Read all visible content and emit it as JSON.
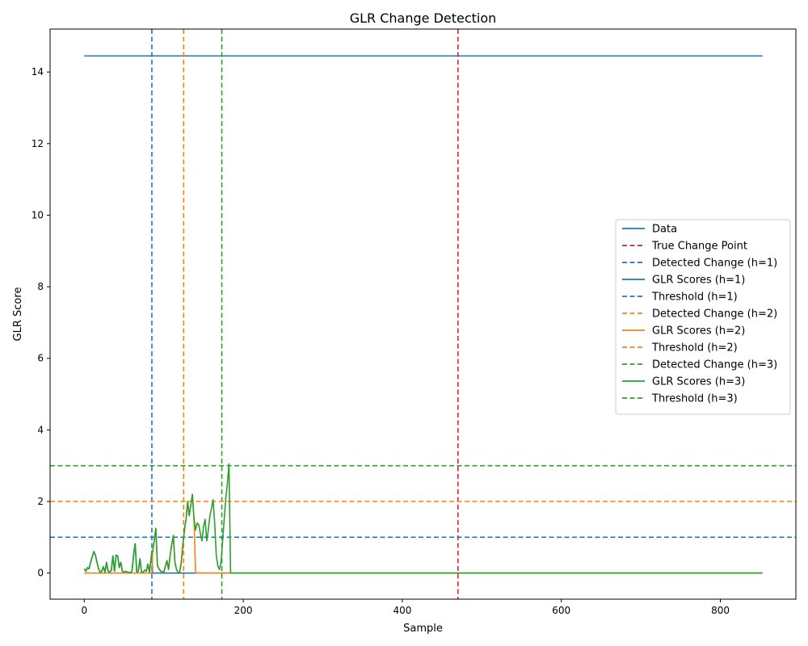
{
  "chart_data": {
    "type": "line",
    "title": "GLR Change Detection",
    "xlabel": "Sample",
    "ylabel": "GLR Score",
    "xlim": [
      -43,
      895
    ],
    "ylim": [
      -0.73,
      15.2
    ],
    "xticks": [
      0,
      200,
      400,
      600,
      800
    ],
    "yticks": [
      0,
      2,
      4,
      6,
      8,
      10,
      12,
      14
    ],
    "grid": false,
    "legend_position": "center-right",
    "legend": [
      {
        "label": "Data",
        "color": "#1f77b4",
        "style": "solid"
      },
      {
        "label": "True Change Point",
        "color": "#d62728",
        "style": "dashed"
      },
      {
        "label": "Detected Change (h=1)",
        "color": "#1f77b4",
        "style": "dashed"
      },
      {
        "label": "GLR Scores (h=1)",
        "color": "#1f77b4",
        "style": "solid"
      },
      {
        "label": "Threshold (h=1)",
        "color": "#1f77b4",
        "style": "dashed"
      },
      {
        "label": "Detected Change (h=2)",
        "color": "#ff7f0e",
        "style": "dashed"
      },
      {
        "label": "GLR Scores (h=2)",
        "color": "#ff7f0e",
        "style": "solid"
      },
      {
        "label": "Threshold (h=2)",
        "color": "#ff7f0e",
        "style": "dashed"
      },
      {
        "label": "Detected Change (h=3)",
        "color": "#2ca02c",
        "style": "dashed"
      },
      {
        "label": "GLR Scores (h=3)",
        "color": "#2ca02c",
        "style": "solid"
      },
      {
        "label": "Threshold (h=3)",
        "color": "#2ca02c",
        "style": "dashed"
      }
    ],
    "vlines": [
      {
        "label": "True Change Point",
        "x": 470,
        "color": "#d62728"
      },
      {
        "label": "Detected Change (h=1)",
        "x": 85,
        "color": "#1f77b4"
      },
      {
        "label": "Detected Change (h=2)",
        "x": 125,
        "color": "#ff7f0e"
      },
      {
        "label": "Detected Change (h=3)",
        "x": 173,
        "color": "#2ca02c"
      }
    ],
    "hlines": [
      {
        "label": "Threshold (h=1)",
        "y": 1,
        "color": "#1f77b4"
      },
      {
        "label": "Threshold (h=2)",
        "y": 2,
        "color": "#ff7f0e"
      },
      {
        "label": "Threshold (h=3)",
        "y": 3,
        "color": "#2ca02c"
      }
    ],
    "series": [
      {
        "name": "Data",
        "color": "#1f77b4",
        "x": [
          0,
          853
        ],
        "y": [
          14.45,
          14.45
        ]
      },
      {
        "name": "GLR Scores (h=1)",
        "color": "#1f77b4",
        "x": [
          0,
          2,
          4,
          6,
          8,
          10,
          12,
          14,
          16,
          18,
          20,
          22,
          24,
          26,
          28,
          30,
          32,
          34,
          36,
          38,
          40,
          42,
          44,
          46,
          48,
          50,
          52,
          55,
          58,
          60,
          62,
          64,
          66,
          68,
          70,
          72,
          74,
          76,
          78,
          80,
          82,
          85,
          86,
          853
        ],
        "y": [
          0.12,
          0.05,
          0.15,
          0.12,
          0.3,
          0.45,
          0.6,
          0.5,
          0.3,
          0.12,
          0.02,
          0.05,
          0.18,
          0.02,
          0.3,
          0.05,
          0.02,
          0.08,
          0.48,
          0.05,
          0.5,
          0.48,
          0.15,
          0.3,
          0.05,
          0.02,
          0.05,
          0.02,
          0.01,
          0.05,
          0.5,
          0.82,
          0.02,
          0.05,
          0.4,
          0.02,
          0.02,
          0.08,
          0.05,
          0.25,
          0.02,
          0.6,
          0,
          0
        ]
      },
      {
        "name": "GLR Scores (h=2)",
        "color": "#ff7f0e",
        "x": [
          0,
          85,
          86,
          88,
          90,
          92,
          94,
          96,
          100,
          104,
          106,
          108,
          110,
          112,
          114,
          116,
          118,
          120,
          122,
          124,
          126,
          128,
          130,
          132,
          134,
          136,
          138,
          140,
          853
        ],
        "y": [
          0,
          0,
          0.6,
          0.9,
          1.25,
          0.2,
          0.12,
          0.05,
          0.02,
          0.35,
          0.1,
          0.5,
          0.8,
          1.05,
          0.3,
          0.1,
          0.02,
          0.02,
          0.3,
          0.8,
          1.2,
          1.5,
          2.0,
          1.6,
          1.9,
          2.2,
          1.5,
          0,
          0
        ]
      },
      {
        "name": "GLR Scores (h=3)",
        "color": "#2ca02c",
        "x": [
          0,
          2,
          4,
          6,
          8,
          10,
          12,
          14,
          16,
          18,
          20,
          22,
          24,
          26,
          28,
          30,
          32,
          34,
          36,
          38,
          40,
          42,
          44,
          46,
          48,
          50,
          52,
          55,
          58,
          60,
          62,
          64,
          66,
          68,
          70,
          72,
          74,
          76,
          78,
          80,
          82,
          85,
          86,
          88,
          90,
          92,
          94,
          96,
          100,
          104,
          106,
          108,
          110,
          112,
          114,
          116,
          118,
          120,
          122,
          124,
          126,
          128,
          130,
          132,
          134,
          136,
          138,
          140,
          142,
          144,
          146,
          148,
          150,
          152,
          154,
          156,
          158,
          160,
          162,
          164,
          166,
          168,
          170,
          172,
          174,
          176,
          178,
          180,
          182,
          184,
          853
        ],
        "y": [
          0.12,
          0.05,
          0.15,
          0.12,
          0.3,
          0.45,
          0.6,
          0.5,
          0.3,
          0.12,
          0.02,
          0.05,
          0.18,
          0.02,
          0.3,
          0.05,
          0.02,
          0.08,
          0.48,
          0.05,
          0.5,
          0.48,
          0.15,
          0.3,
          0.05,
          0.02,
          0.05,
          0.02,
          0.01,
          0.05,
          0.5,
          0.82,
          0.02,
          0.05,
          0.4,
          0.02,
          0.02,
          0.08,
          0.05,
          0.25,
          0.02,
          0.6,
          0.6,
          0.9,
          1.25,
          0.2,
          0.12,
          0.05,
          0.02,
          0.35,
          0.1,
          0.5,
          0.8,
          1.05,
          0.3,
          0.1,
          0.02,
          0.02,
          0.3,
          0.8,
          1.2,
          1.5,
          2.0,
          1.6,
          1.9,
          2.2,
          1.5,
          1.2,
          1.4,
          1.35,
          1.1,
          0.9,
          1.3,
          1.5,
          0.9,
          1.2,
          1.6,
          1.8,
          2.05,
          1.4,
          0.5,
          0.2,
          0.1,
          0.3,
          0.9,
          1.5,
          2.1,
          2.5,
          3.05,
          0,
          0
        ]
      }
    ]
  }
}
